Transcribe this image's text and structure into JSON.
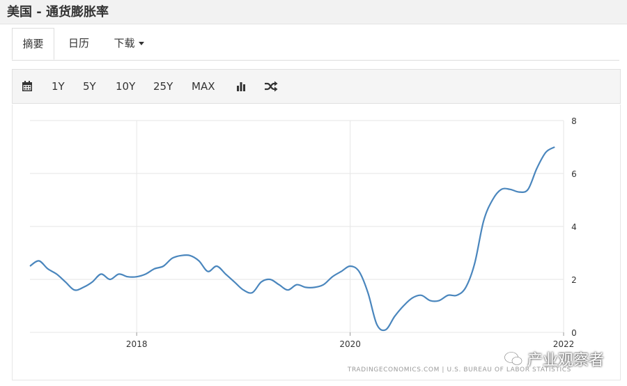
{
  "page": {
    "title": "美国 - 通货膨胀率"
  },
  "tabs": [
    {
      "label": "摘要",
      "active": true
    },
    {
      "label": "日历"
    },
    {
      "label": "下载"
    }
  ],
  "toolbar": {
    "ranges": [
      "1Y",
      "5Y",
      "10Y",
      "25Y",
      "MAX"
    ],
    "icons": [
      "calendar-icon",
      "bar-chart-icon",
      "shuffle-icon"
    ]
  },
  "colors": {
    "line": "#4a86bd",
    "grid": "#e6e6e6",
    "text": "#333333"
  },
  "chart_data": {
    "type": "line",
    "title": "",
    "xlabel": "",
    "ylabel": "",
    "ylim": [
      0,
      8
    ],
    "yticks": [
      0,
      2,
      4,
      6,
      8
    ],
    "xlim": [
      "2017-01",
      "2022-01"
    ],
    "xticks": [
      {
        "x": "2018-01",
        "label": "2018"
      },
      {
        "x": "2020-01",
        "label": "2020"
      },
      {
        "x": "2022-01",
        "label": "2022"
      }
    ],
    "grid": true,
    "y_axis_position": "right",
    "source": "TRADINGECONOMICS.COM  |  U.S. BUREAU OF LABOR STATISTICS",
    "series": [
      {
        "x": [
          "2017-01",
          "2017-02",
          "2017-03",
          "2017-04",
          "2017-05",
          "2017-06",
          "2017-07",
          "2017-08",
          "2017-09",
          "2017-10",
          "2017-11",
          "2017-12",
          "2018-01",
          "2018-02",
          "2018-03",
          "2018-04",
          "2018-05",
          "2018-06",
          "2018-07",
          "2018-08",
          "2018-09",
          "2018-10",
          "2018-11",
          "2018-12",
          "2019-01",
          "2019-02",
          "2019-03",
          "2019-04",
          "2019-05",
          "2019-06",
          "2019-07",
          "2019-08",
          "2019-09",
          "2019-10",
          "2019-11",
          "2019-12",
          "2020-01",
          "2020-02",
          "2020-03",
          "2020-04",
          "2020-05",
          "2020-06",
          "2020-07",
          "2020-08",
          "2020-09",
          "2020-10",
          "2020-11",
          "2020-12",
          "2021-01",
          "2021-02",
          "2021-03",
          "2021-04",
          "2021-05",
          "2021-06",
          "2021-07",
          "2021-08",
          "2021-09",
          "2021-10",
          "2021-11",
          "2021-12"
        ],
        "values": [
          2.5,
          2.7,
          2.4,
          2.2,
          1.9,
          1.6,
          1.7,
          1.9,
          2.2,
          2.0,
          2.2,
          2.1,
          2.1,
          2.2,
          2.4,
          2.5,
          2.8,
          2.9,
          2.9,
          2.7,
          2.3,
          2.5,
          2.2,
          1.9,
          1.6,
          1.5,
          1.9,
          2.0,
          1.8,
          1.6,
          1.8,
          1.7,
          1.7,
          1.8,
          2.1,
          2.3,
          2.5,
          2.3,
          1.5,
          0.3,
          0.1,
          0.6,
          1.0,
          1.3,
          1.4,
          1.2,
          1.2,
          1.4,
          1.4,
          1.7,
          2.6,
          4.2,
          5.0,
          5.4,
          5.4,
          5.3,
          5.4,
          6.2,
          6.8,
          7.0
        ]
      }
    ]
  },
  "watermark": {
    "text": "产业观察者"
  }
}
